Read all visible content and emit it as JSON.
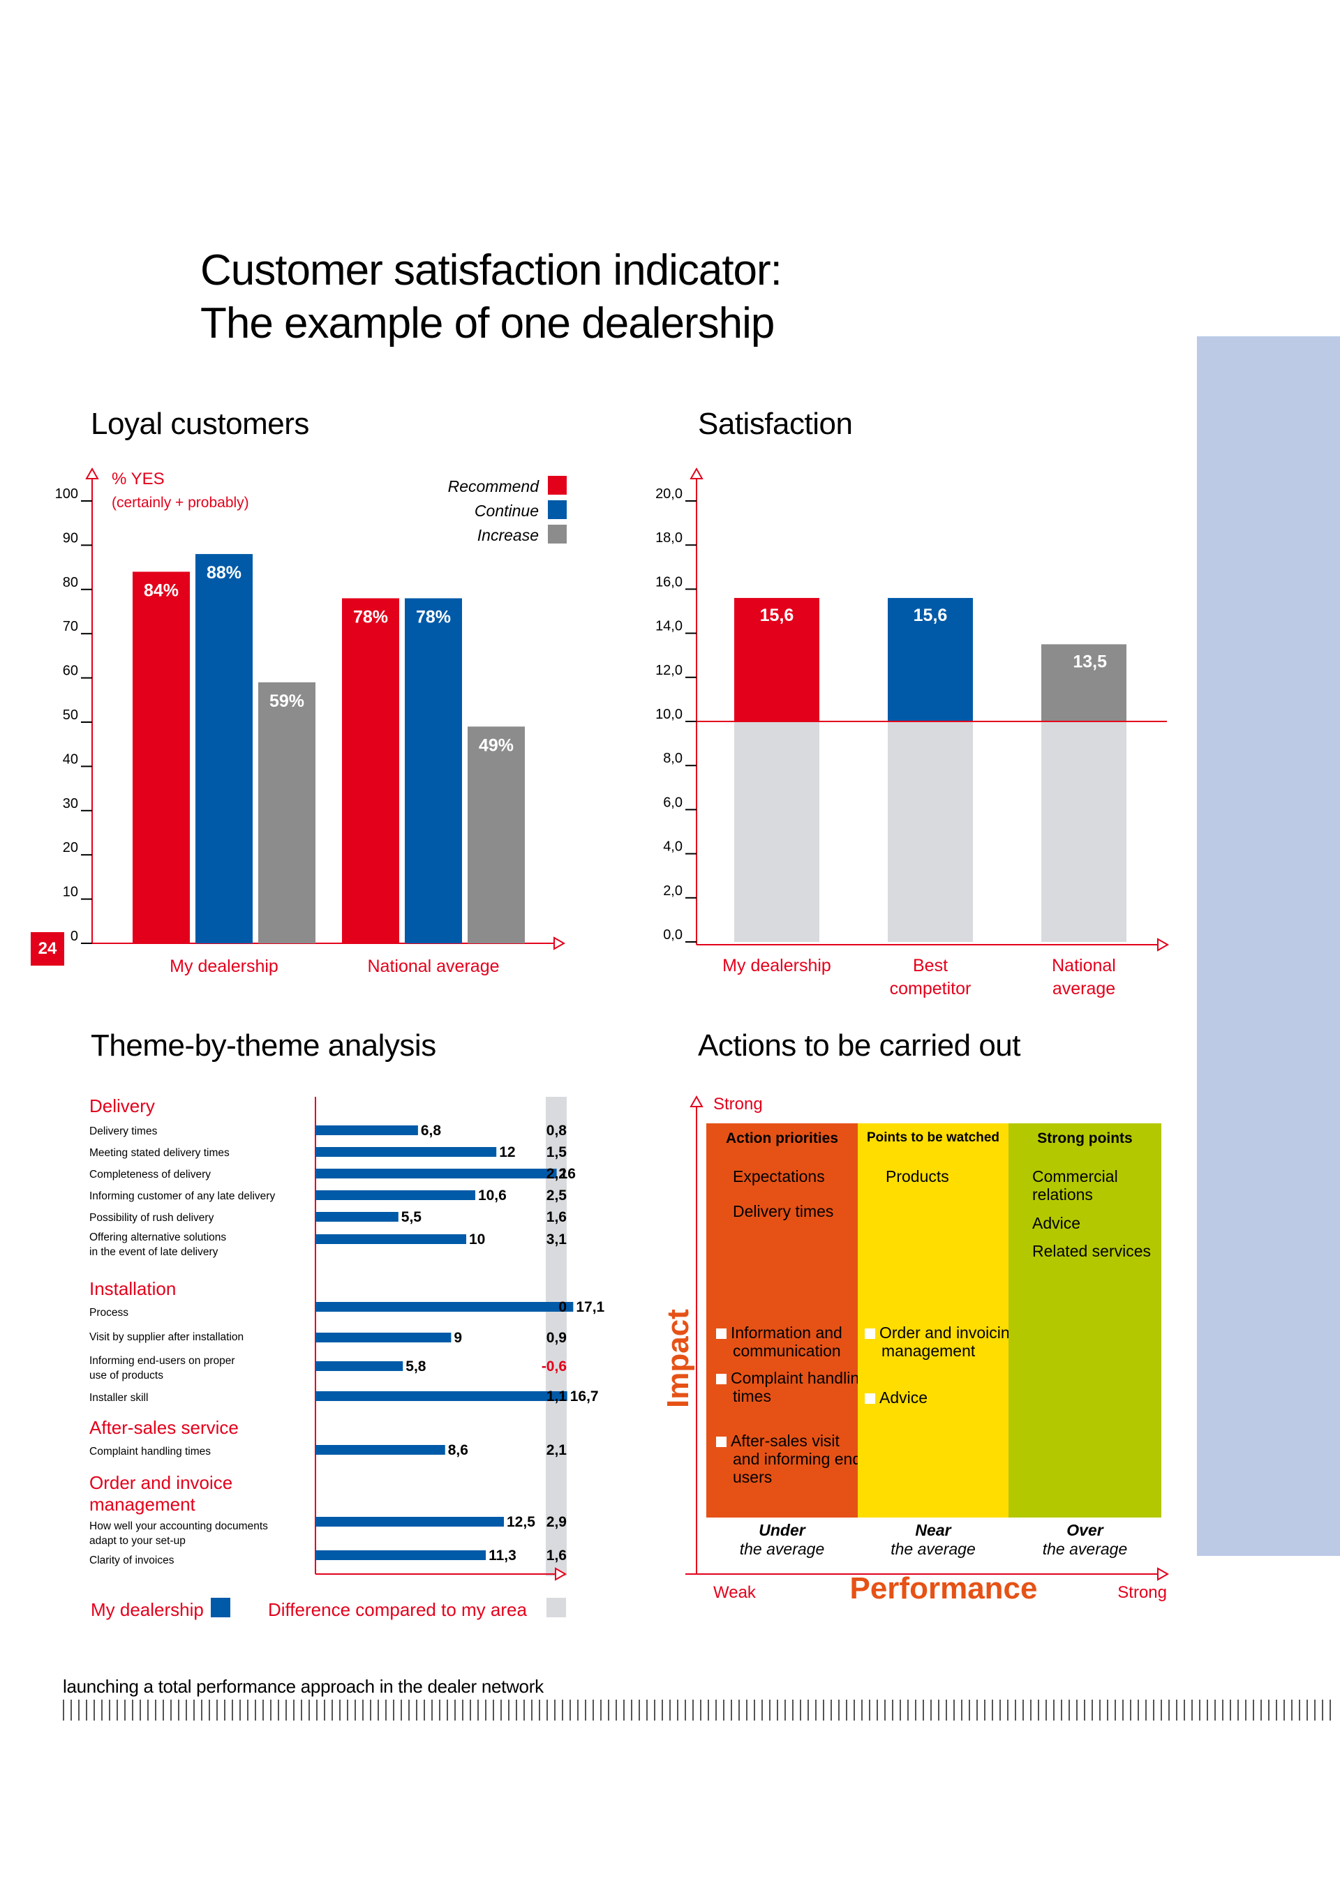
{
  "page": {
    "title_line1": "Customer satisfaction indicator:",
    "title_line2": "The example of one dealership",
    "page_number": "24",
    "footer": "launching a total performance approach in the dealer network"
  },
  "colors": {
    "red": "#e3001b",
    "blue": "#005aa8",
    "grey": "#8c8c8c",
    "light_grey": "#d9dadd",
    "side_band": "#bccae6",
    "orange": "#e65216",
    "yellow": "#ffdd00",
    "green": "#b4c800"
  },
  "loyal": {
    "section_title": "Loyal customers",
    "ylabel": "% YES",
    "ylabel_sub": "(certainly + probably)",
    "legend": [
      "Recommend",
      "Continue",
      "Increase"
    ]
  },
  "satisfaction": {
    "section_title": "Satisfaction"
  },
  "theme": {
    "section_title": "Theme-by-theme analysis",
    "legend_my": "My dealership",
    "legend_diff": "Difference compared to my area"
  },
  "actions": {
    "section_title": "Actions to be carried out",
    "y_strong": "Strong",
    "y_label": "Impact",
    "x_weak": "Weak",
    "x_label": "Performance",
    "x_strong": "Strong",
    "columns": [
      {
        "title": "Action priorities",
        "footer": "Under\nthe average",
        "items": [
          {
            "text": "Expectations",
            "check": false
          },
          {
            "text": "Delivery times",
            "check": false
          },
          {
            "text": "Information and communication",
            "check": true
          },
          {
            "text": "Complaint handling times",
            "check": true
          },
          {
            "text": "After-sales visit and informing end-users",
            "check": true
          }
        ]
      },
      {
        "title": "Points to be watched",
        "footer": "Near\nthe average",
        "items": [
          {
            "text": "Products",
            "check": false
          },
          {
            "text": "Order and invoicing management",
            "check": true
          },
          {
            "text": "Advice",
            "check": true
          }
        ]
      },
      {
        "title": "Strong points",
        "footer": "Over\nthe average",
        "items": [
          {
            "text": "Commercial relations",
            "check": false
          },
          {
            "text": "Advice",
            "check": false
          },
          {
            "text": "Related services",
            "check": false
          }
        ]
      }
    ]
  },
  "chart_data": [
    {
      "type": "bar",
      "title": "Loyal customers",
      "ylabel": "% YES (certainly + probably)",
      "ylim": [
        0,
        100
      ],
      "yticks": [
        "0",
        "10",
        "20",
        "30",
        "40",
        "50",
        "60",
        "70",
        "80",
        "90",
        "100"
      ],
      "categories": [
        "My dealership",
        "National average"
      ],
      "series": [
        {
          "name": "Recommend",
          "values": [
            84,
            78
          ],
          "labels": [
            "84%",
            "78%"
          ]
        },
        {
          "name": "Continue",
          "values": [
            88,
            78
          ],
          "labels": [
            "88%",
            "78%"
          ]
        },
        {
          "name": "Increase",
          "values": [
            59,
            49
          ],
          "labels": [
            "59%",
            "49%"
          ]
        }
      ],
      "legend": "top-right"
    },
    {
      "type": "bar",
      "title": "Satisfaction",
      "ylim": [
        0,
        20
      ],
      "yticks": [
        "0,0",
        "2,0",
        "4,0",
        "6,0",
        "8,0",
        "10,0",
        "12,0",
        "14,0",
        "16,0",
        "18,0",
        "20,0"
      ],
      "reference_line": 10,
      "categories": [
        "My dealership",
        "Best\ncompetitor",
        "National\naverage"
      ],
      "values": [
        15.6,
        15.6,
        13.5
      ],
      "labels": [
        "15,6",
        "15,6",
        "13,5"
      ]
    },
    {
      "type": "bar",
      "orientation": "horizontal",
      "title": "Theme-by-theme analysis",
      "xlim": [
        0,
        20
      ],
      "groups": [
        {
          "name": "Delivery",
          "items": [
            {
              "label": "Delivery times",
              "value": 6.8,
              "text": "6,8",
              "diff": "0,8"
            },
            {
              "label": "Meeting stated delivery times",
              "value": 12,
              "text": "12",
              "diff": "1,5"
            },
            {
              "label": "Completeness of delivery",
              "value": 16,
              "text": "16",
              "diff": "2,2"
            },
            {
              "label": "Informing customer of any late delivery",
              "value": 10.6,
              "text": "10,6",
              "diff": "2,5"
            },
            {
              "label": "Possibility of rush delivery",
              "value": 5.5,
              "text": "5,5",
              "diff": "1,6"
            },
            {
              "label": "Offering alternative solutions\nin the event of late delivery",
              "value": 10,
              "text": "10",
              "diff": "3,1"
            }
          ]
        },
        {
          "name": "Installation",
          "items": [
            {
              "label": "Process",
              "value": 17.1,
              "text": "17,1",
              "diff": "0"
            },
            {
              "label": "Visit by supplier after installation",
              "value": 9,
              "text": "9",
              "diff": "0,9"
            },
            {
              "label": "Informing end-users on proper\nuse of products",
              "value": 5.8,
              "text": "5,8",
              "diff": "-0,6",
              "negative": true
            },
            {
              "label": "Installer skill",
              "value": 16.7,
              "text": "16,7",
              "diff": "1,1"
            }
          ]
        },
        {
          "name": "After-sales service",
          "items": [
            {
              "label": "Complaint handling times",
              "value": 8.6,
              "text": "8,6",
              "diff": "2,1"
            }
          ]
        },
        {
          "name": "Order and invoice\nmanagement",
          "items": [
            {
              "label": "How well your accounting documents\nadapt to your set-up",
              "value": 12.5,
              "text": "12,5",
              "diff": "2,9"
            },
            {
              "label": "Clarity of invoices",
              "value": 11.3,
              "text": "11,3",
              "diff": "1,6"
            }
          ]
        }
      ]
    }
  ]
}
